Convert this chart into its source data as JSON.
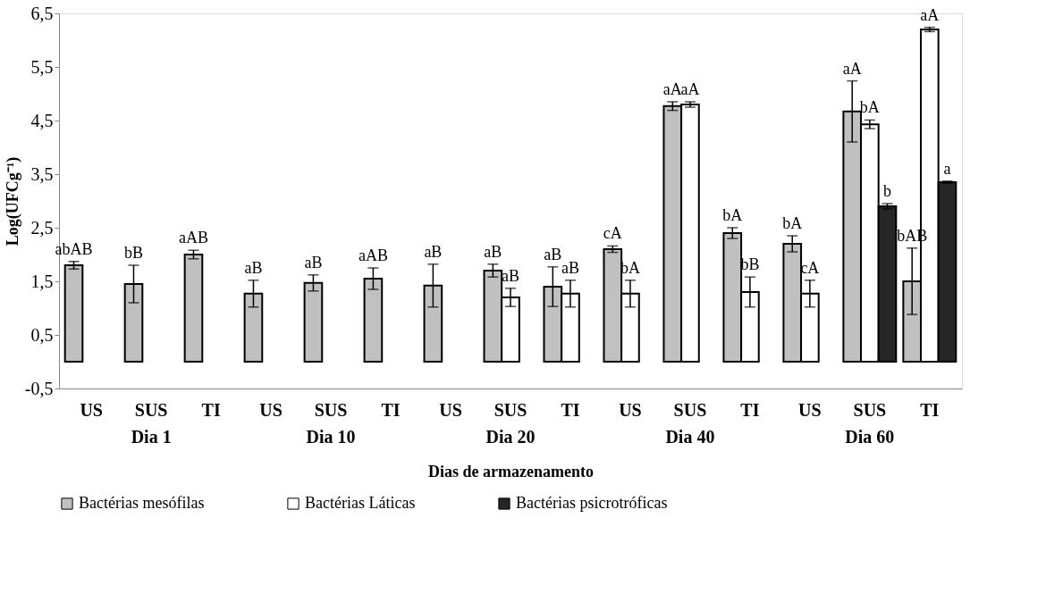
{
  "chart_data": {
    "type": "bar",
    "ylabel": "Log(UFCg⁻¹)",
    "xlabel": "Dias de armazenamento",
    "categories": [
      "US",
      "SUS",
      "TI",
      "US",
      "SUS",
      "TI",
      "US",
      "SUS",
      "TI",
      "US",
      "SUS",
      "TI",
      "US",
      "SUS",
      "TI"
    ],
    "annotations": [
      "Dia 1",
      "Dia 10",
      "Dia 20",
      "Dia 40",
      "Dia 60"
    ],
    "series": [
      {
        "name": "Bactérias mesófilas",
        "color": "#c0c0c0",
        "values": [
          1.8,
          1.45,
          2.0,
          1.27,
          1.47,
          1.55,
          1.42,
          1.7,
          1.4,
          2.1,
          4.77,
          2.4,
          2.2,
          4.67,
          1.5
        ],
        "errors": [
          0.07,
          0.35,
          0.08,
          0.25,
          0.15,
          0.2,
          0.4,
          0.12,
          0.37,
          0.06,
          0.08,
          0.1,
          0.15,
          0.57,
          0.62
        ],
        "value_labels": [
          "abAB",
          "bB",
          "aAB",
          "aB",
          "aB",
          "aAB",
          "aB",
          "aB",
          "aB",
          "cA",
          "aA",
          "bA",
          "bA",
          "aA",
          "bAB"
        ]
      },
      {
        "name": "Bactérias Láticas",
        "color": "#ffffff",
        "values": [
          null,
          null,
          null,
          null,
          null,
          null,
          null,
          1.2,
          1.27,
          1.27,
          4.8,
          1.3,
          1.27,
          4.43,
          6.2
        ],
        "errors": [
          null,
          null,
          null,
          null,
          null,
          null,
          null,
          0.17,
          0.25,
          0.25,
          0.05,
          0.28,
          0.25,
          0.08,
          0.04
        ],
        "value_labels": [
          null,
          null,
          null,
          null,
          null,
          null,
          null,
          "aB",
          "aB",
          "bA",
          "aA",
          "bB",
          "cA",
          "bA",
          "aA"
        ]
      },
      {
        "name": "Bactérias psicrotróficas",
        "color": "#262626",
        "values": [
          null,
          null,
          null,
          null,
          null,
          null,
          null,
          null,
          null,
          null,
          null,
          null,
          null,
          2.9,
          3.35
        ],
        "errors": [
          null,
          null,
          null,
          null,
          null,
          null,
          null,
          null,
          null,
          null,
          null,
          null,
          null,
          0.05,
          0.02
        ],
        "value_labels": [
          null,
          null,
          null,
          null,
          null,
          null,
          null,
          null,
          null,
          null,
          null,
          null,
          null,
          "b",
          "a"
        ]
      }
    ],
    "ylim": [
      -0.5,
      6.5
    ],
    "yticks": [
      {
        "value": -0.5,
        "label": "-0,5"
      },
      {
        "value": 0.5,
        "label": "0,5"
      },
      {
        "value": 1.5,
        "label": "1,5"
      },
      {
        "value": 2.5,
        "label": "2,5"
      },
      {
        "value": 3.5,
        "label": "3,5"
      },
      {
        "value": 4.5,
        "label": "4,5"
      },
      {
        "value": 5.5,
        "label": "5,5"
      },
      {
        "value": 6.5,
        "label": "6,5"
      }
    ],
    "grid": false,
    "legend": "bottom"
  }
}
